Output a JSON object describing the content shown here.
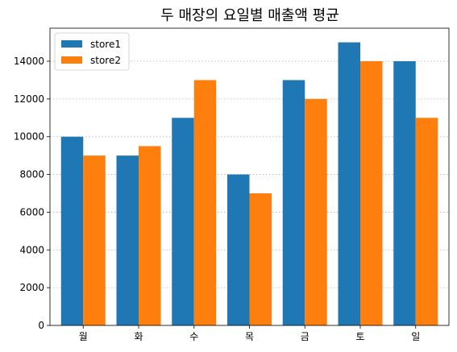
{
  "chart_data": {
    "type": "bar",
    "title": "두 매장의 요일별 매출액 평균",
    "xlabel": "",
    "ylabel": "",
    "categories": [
      "월",
      "화",
      "수",
      "목",
      "금",
      "토",
      "일"
    ],
    "series": [
      {
        "name": "store1",
        "color": "#1f77b4",
        "values": [
          10000,
          9000,
          11000,
          8000,
          13000,
          15000,
          14000
        ]
      },
      {
        "name": "store2",
        "color": "#ff7f0e",
        "values": [
          9000,
          9500,
          13000,
          7000,
          12000,
          14000,
          11000
        ]
      }
    ],
    "ylim": [
      0,
      15750
    ],
    "yticks": [
      0,
      2000,
      4000,
      6000,
      8000,
      10000,
      12000,
      14000
    ],
    "grid": "y-dotted",
    "legend_position": "top-left"
  }
}
